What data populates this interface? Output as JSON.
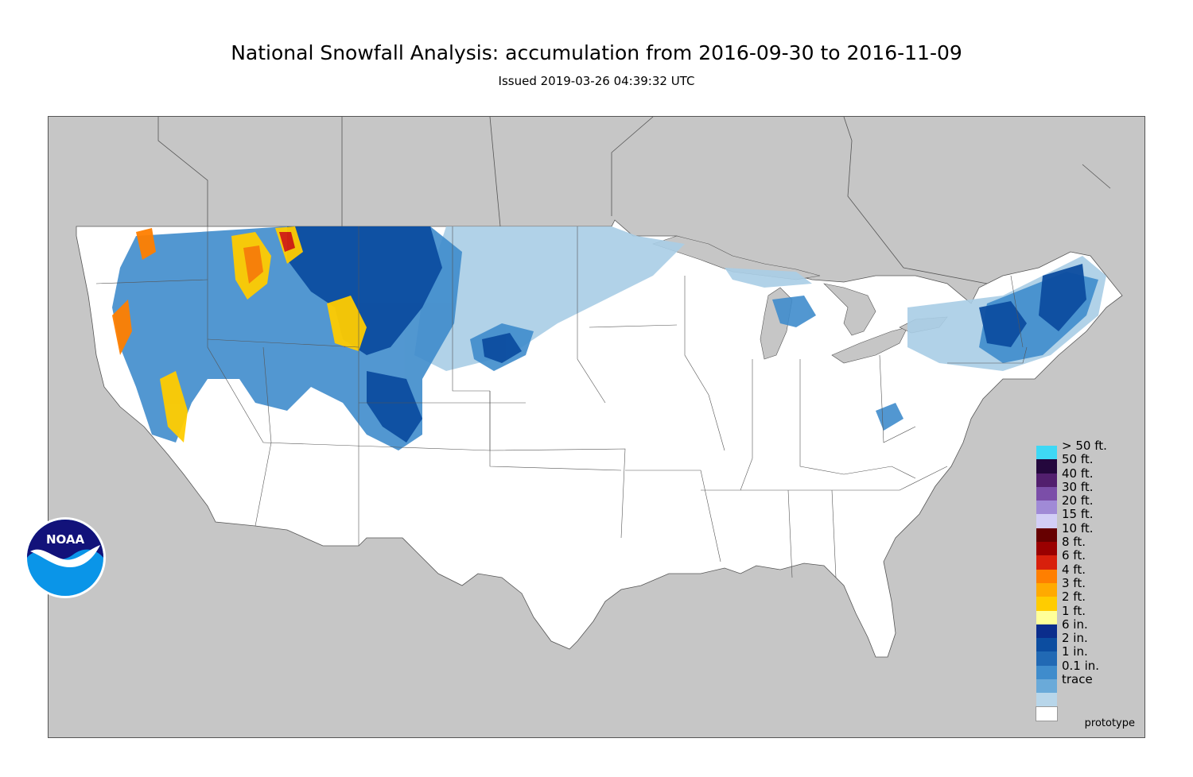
{
  "title": "National Snowfall Analysis: accumulation from 2016-09-30 to 2016-11-09",
  "subtitle": "Issued 2019-03-26 04:39:32 UTC",
  "watermark": "prototype",
  "logo_text": "NOAA",
  "colors": {
    "land_outside": "#c6c6c6",
    "us_land": "#ffffff",
    "border_line": "#555555",
    "light_blue": "#a9cde6",
    "mid_blue": "#6aaad6",
    "blue": "#3a7ec2",
    "dark_blue": "#1b5aa8",
    "navy": "#0b2d8c",
    "yellow": "#ffff99",
    "orange": "#ff9900",
    "red": "#e0200a",
    "dark_red": "#8b0000"
  },
  "legend": [
    {
      "label": "> 50 ft.",
      "color": "#3ed8f5"
    },
    {
      "label": "50 ft.",
      "color": "#24073d"
    },
    {
      "label": "40 ft.",
      "color": "#521f6e"
    },
    {
      "label": "30 ft.",
      "color": "#7b4ea8"
    },
    {
      "label": "20 ft.",
      "color": "#a08ad6"
    },
    {
      "label": "15 ft.",
      "color": "#d2cef6"
    },
    {
      "label": "10 ft.",
      "color": "#660000"
    },
    {
      "label": "8 ft.",
      "color": "#9a0000"
    },
    {
      "label": "6 ft.",
      "color": "#d8200c"
    },
    {
      "label": "4 ft.",
      "color": "#ff7f00"
    },
    {
      "label": "3 ft.",
      "color": "#ffaa00"
    },
    {
      "label": "2 ft.",
      "color": "#ffcc00"
    },
    {
      "label": "1 ft.",
      "color": "#ffff99"
    },
    {
      "label": "6 in.",
      "color": "#0b2d8c"
    },
    {
      "label": "2 in.",
      "color": "#0c4da0"
    },
    {
      "label": "1 in.",
      "color": "#2169b4"
    },
    {
      "label": "0.1 in.",
      "color": "#3f8ccc"
    },
    {
      "label": "trace",
      "color": "#6aaad9"
    },
    {
      "label": "",
      "color": "#b8d6ea"
    },
    {
      "label": "",
      "color": "#ffffff"
    }
  ]
}
